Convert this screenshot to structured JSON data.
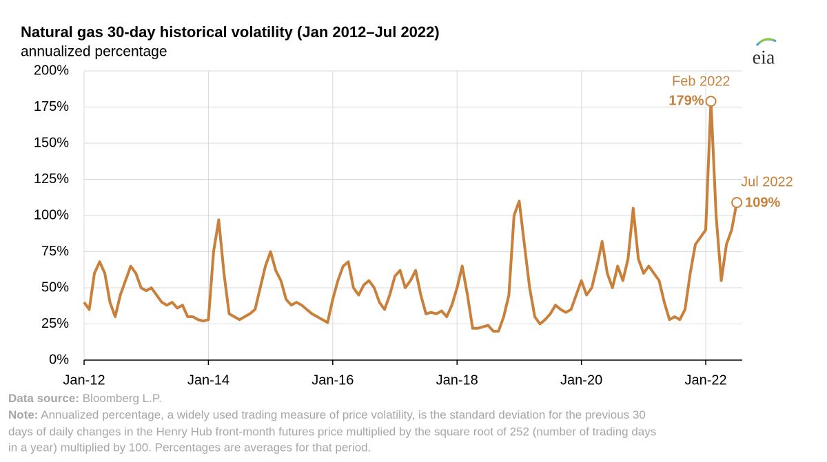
{
  "chart_data": {
    "type": "line",
    "title": "Natural gas 30-day historical volatility (Jan 2012–Jul 2022)",
    "subtitle": "annualized percentage",
    "logo": "eia",
    "x": [
      "Jan-12",
      "Feb-12",
      "Mar-12",
      "Apr-12",
      "May-12",
      "Jun-12",
      "Jul-12",
      "Aug-12",
      "Sep-12",
      "Oct-12",
      "Nov-12",
      "Dec-12",
      "Jan-13",
      "Feb-13",
      "Mar-13",
      "Apr-13",
      "May-13",
      "Jun-13",
      "Jul-13",
      "Aug-13",
      "Sep-13",
      "Oct-13",
      "Nov-13",
      "Dec-13",
      "Jan-14",
      "Feb-14",
      "Mar-14",
      "Apr-14",
      "May-14",
      "Jun-14",
      "Jul-14",
      "Aug-14",
      "Sep-14",
      "Oct-14",
      "Nov-14",
      "Dec-14",
      "Jan-15",
      "Feb-15",
      "Mar-15",
      "Apr-15",
      "May-15",
      "Jun-15",
      "Jul-15",
      "Aug-15",
      "Sep-15",
      "Oct-15",
      "Nov-15",
      "Dec-15",
      "Jan-16",
      "Feb-16",
      "Mar-16",
      "Apr-16",
      "May-16",
      "Jun-16",
      "Jul-16",
      "Aug-16",
      "Sep-16",
      "Oct-16",
      "Nov-16",
      "Dec-16",
      "Jan-17",
      "Feb-17",
      "Mar-17",
      "Apr-17",
      "May-17",
      "Jun-17",
      "Jul-17",
      "Aug-17",
      "Sep-17",
      "Oct-17",
      "Nov-17",
      "Dec-17",
      "Jan-18",
      "Feb-18",
      "Mar-18",
      "Apr-18",
      "May-18",
      "Jun-18",
      "Jul-18",
      "Aug-18",
      "Sep-18",
      "Oct-18",
      "Nov-18",
      "Dec-18",
      "Jan-19",
      "Feb-19",
      "Mar-19",
      "Apr-19",
      "May-19",
      "Jun-19",
      "Jul-19",
      "Aug-19",
      "Sep-19",
      "Oct-19",
      "Nov-19",
      "Dec-19",
      "Jan-20",
      "Feb-20",
      "Mar-20",
      "Apr-20",
      "May-20",
      "Jun-20",
      "Jul-20",
      "Aug-20",
      "Sep-20",
      "Oct-20",
      "Nov-20",
      "Dec-20",
      "Jan-21",
      "Feb-21",
      "Mar-21",
      "Apr-21",
      "May-21",
      "Jun-21",
      "Jul-21",
      "Aug-21",
      "Sep-21",
      "Oct-21",
      "Nov-21",
      "Dec-21",
      "Jan-22",
      "Feb-22",
      "Mar-22",
      "Apr-22",
      "May-22",
      "Jun-22",
      "Jul-22"
    ],
    "series": [
      {
        "name": "30-day historical volatility",
        "color": "#c8803a",
        "values": [
          40,
          35,
          60,
          68,
          60,
          40,
          30,
          45,
          55,
          65,
          60,
          50,
          48,
          50,
          45,
          40,
          38,
          40,
          36,
          38,
          30,
          30,
          28,
          27,
          28,
          75,
          97,
          60,
          32,
          30,
          28,
          30,
          32,
          35,
          50,
          65,
          75,
          62,
          55,
          42,
          38,
          40,
          38,
          35,
          32,
          30,
          28,
          26,
          42,
          55,
          65,
          68,
          50,
          45,
          52,
          55,
          50,
          40,
          35,
          45,
          58,
          62,
          50,
          55,
          62,
          45,
          32,
          33,
          32,
          34,
          30,
          38,
          50,
          65,
          45,
          22,
          22,
          23,
          24,
          20,
          20,
          30,
          45,
          100,
          110,
          80,
          50,
          30,
          25,
          28,
          32,
          38,
          35,
          33,
          35,
          45,
          55,
          45,
          50,
          65,
          82,
          60,
          50,
          65,
          55,
          70,
          105,
          70,
          60,
          65,
          60,
          55,
          40,
          28,
          30,
          28,
          35,
          60,
          80,
          85,
          90,
          179,
          100,
          55,
          80,
          90,
          109
        ]
      }
    ],
    "annotations": [
      {
        "x": "Feb-22",
        "text": "Feb 2022",
        "value": 179,
        "value_label": "179%"
      },
      {
        "x": "Jul-22",
        "text": "Jul 2022",
        "value": 109,
        "value_label": "109%"
      }
    ],
    "ylim": [
      0,
      200
    ],
    "yticks": [
      {
        "value": 0,
        "label": "0%"
      },
      {
        "value": 25,
        "label": "25%"
      },
      {
        "value": 50,
        "label": "50%"
      },
      {
        "value": 75,
        "label": "75%"
      },
      {
        "value": 100,
        "label": "100%"
      },
      {
        "value": 125,
        "label": "125%"
      },
      {
        "value": 150,
        "label": "150%"
      },
      {
        "value": 175,
        "label": "175%"
      },
      {
        "value": 200,
        "label": "200%"
      }
    ],
    "xticks": [
      "Jan-12",
      "Jan-14",
      "Jan-16",
      "Jan-18",
      "Jan-20",
      "Jan-22"
    ],
    "grid": true,
    "source_label": "Data source:",
    "source": "Bloomberg L.P.",
    "note_label": "Note:",
    "note_lines": [
      "Annualized percentage, a widely used trading measure of price volatility, is the standard deviation for the previous 30",
      "days of daily changes in the Henry Hub front-month futures price multiplied by the square root of 252 (number of trading days",
      "in a year) multiplied by 100. Percentages are averages for that period."
    ]
  }
}
